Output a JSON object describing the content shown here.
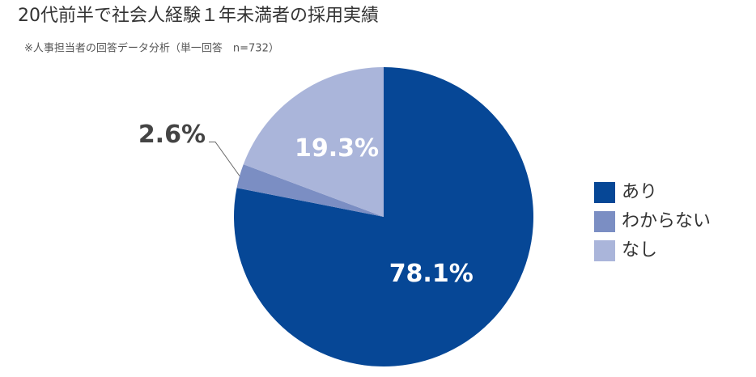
{
  "chart_data": {
    "type": "pie",
    "title": "20代前半で社会人経験１年未満者の採用実績",
    "subtitle": "※人事担当者の回答データ分析（単一回答　n=732）",
    "categories": [
      "あり",
      "わからない",
      "なし"
    ],
    "values": [
      78.1,
      2.6,
      19.3
    ],
    "value_labels": [
      "78.1%",
      "2.6%",
      "19.3%"
    ],
    "colors": [
      "#064796",
      "#7b8ec3",
      "#aab5da"
    ],
    "legend": "right"
  }
}
